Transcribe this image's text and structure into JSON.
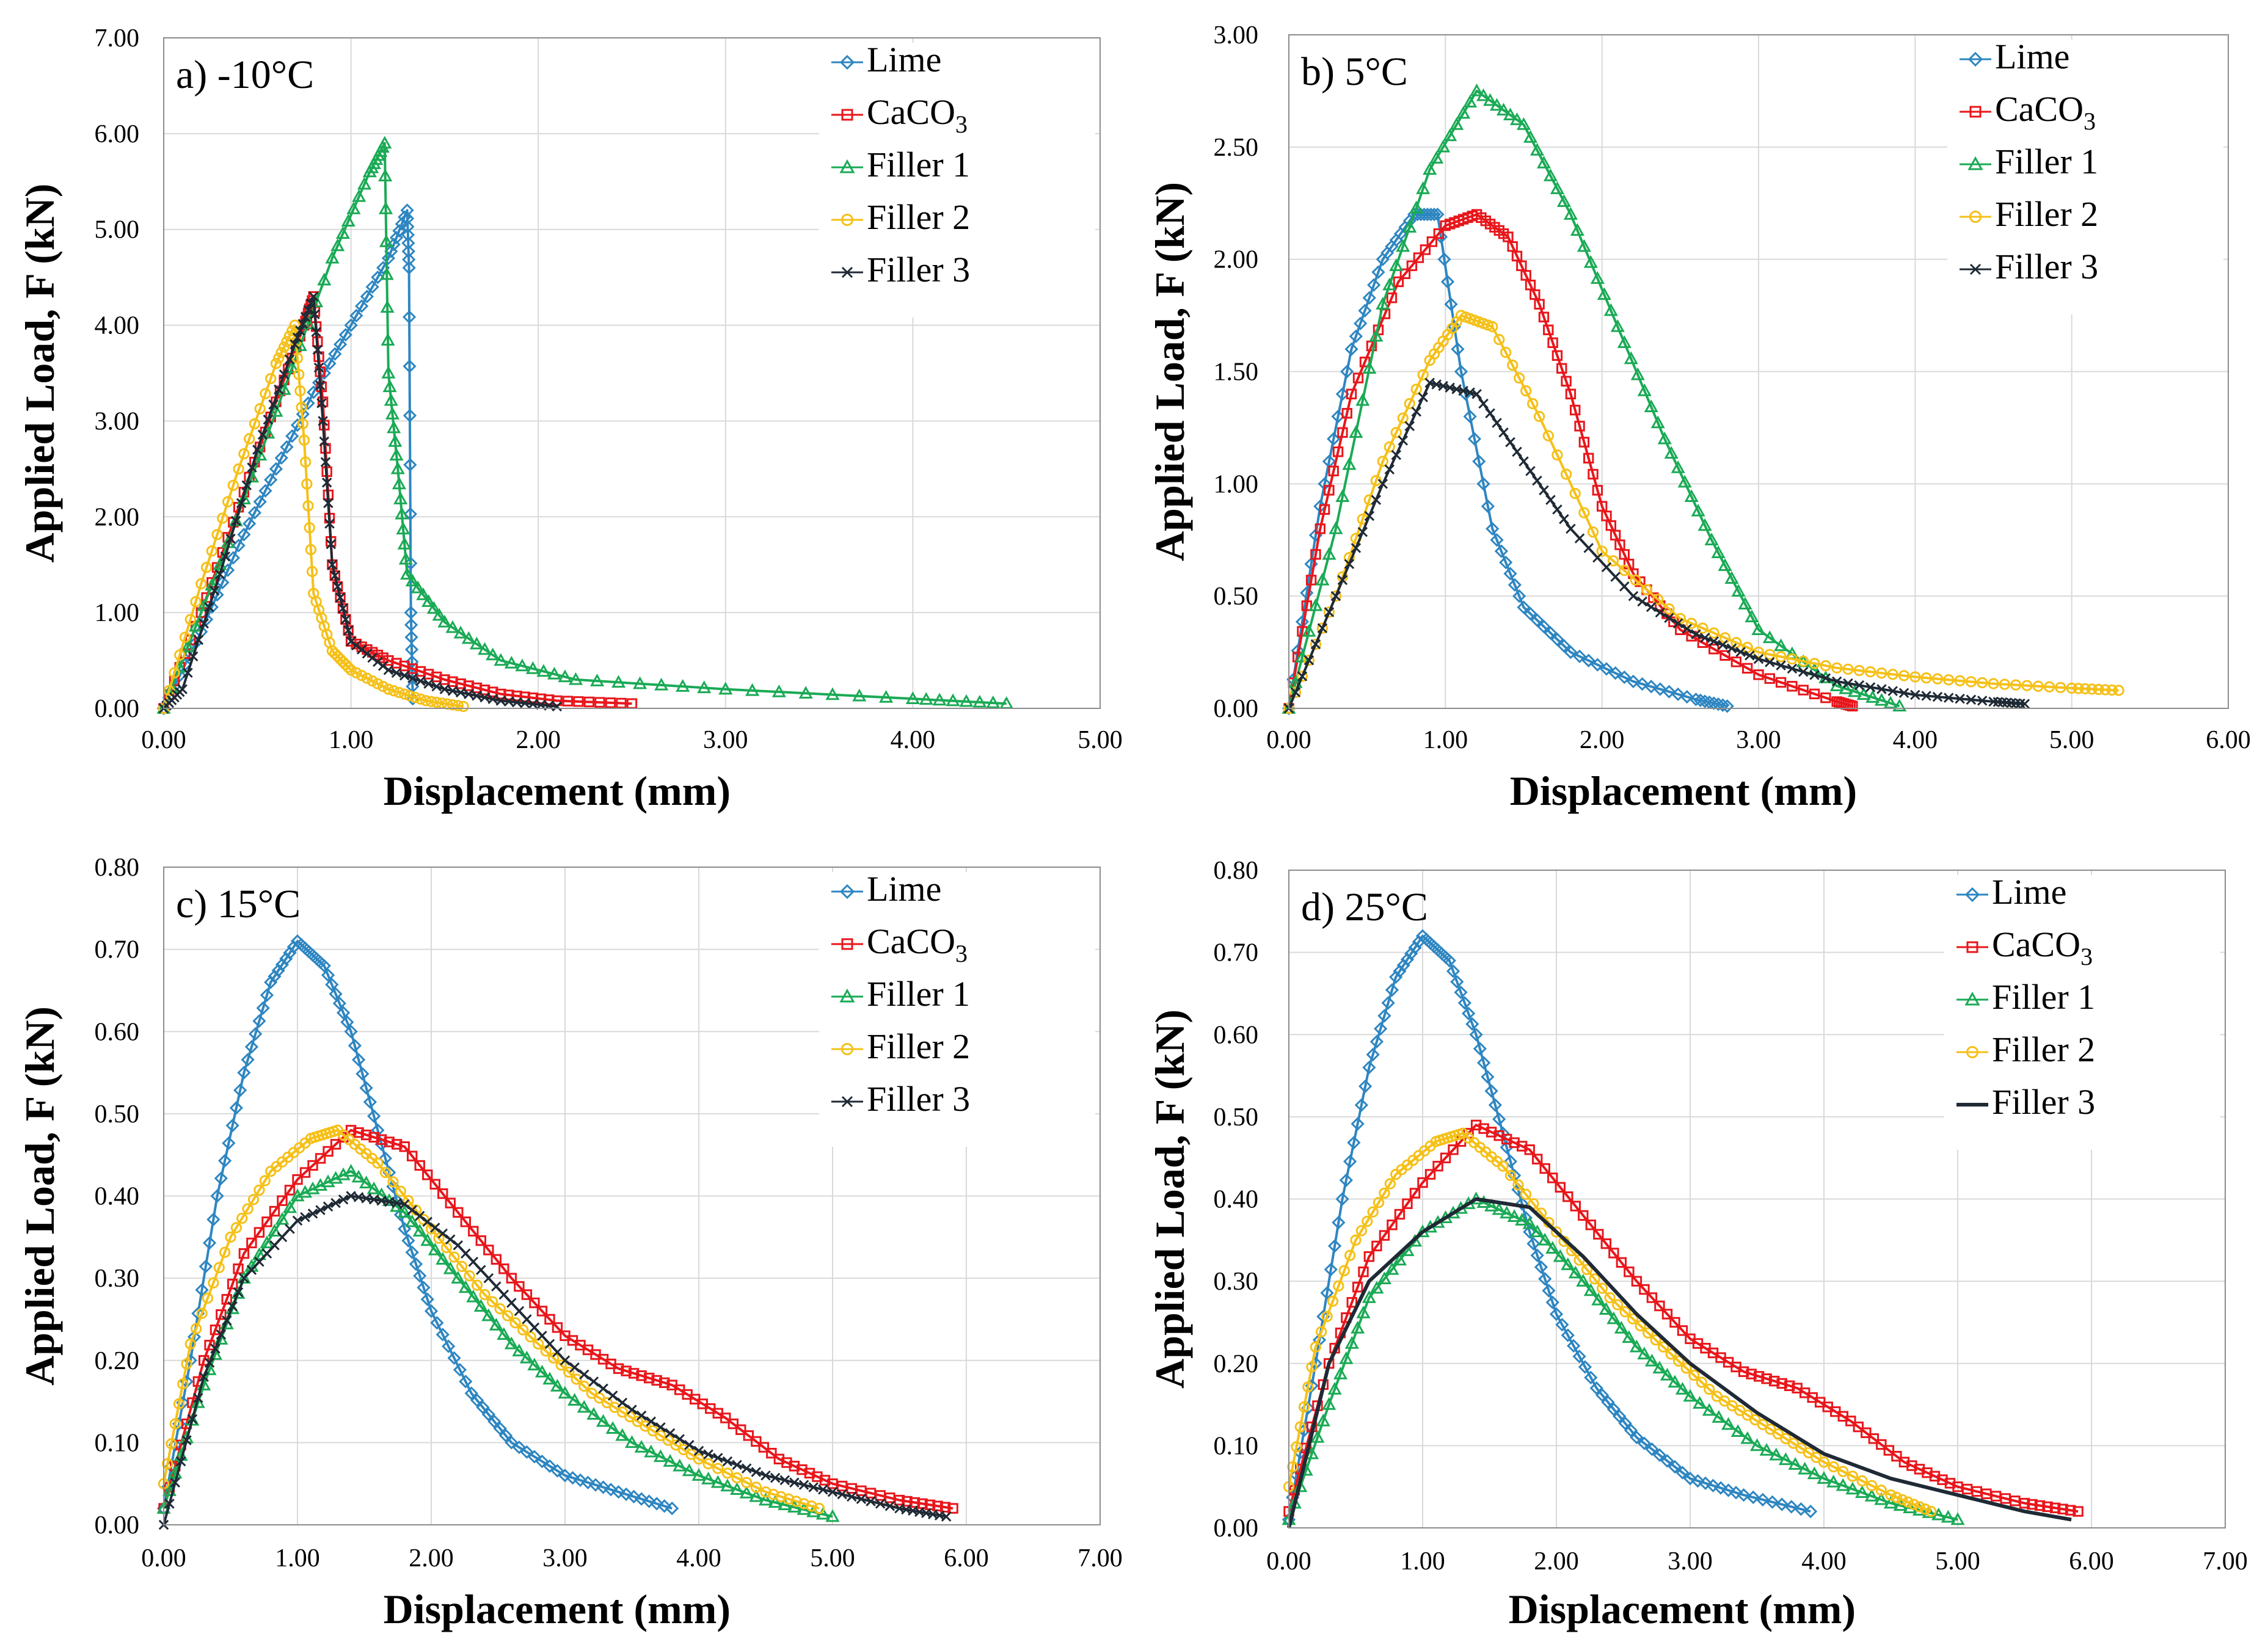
{
  "figure": {
    "background": "#ffffff"
  },
  "chart_data": [
    {
      "panel": "a",
      "title": "a) -10°C",
      "type": "scatter",
      "xlabel": "Displacement (mm)",
      "ylabel": "Applied Load, F (kN)",
      "xlim": [
        0,
        5
      ],
      "ylim": [
        0,
        7
      ],
      "xticks": [
        "0.00",
        "1.00",
        "2.00",
        "3.00",
        "4.00",
        "5.00"
      ],
      "yticks": [
        "0.00",
        "1.00",
        "2.00",
        "3.00",
        "4.00",
        "5.00",
        "6.00",
        "7.00"
      ],
      "grid": true,
      "legend_position": "top-right",
      "series": [
        {
          "name": "Lime",
          "label_main": "Lime",
          "label_sub": "",
          "color": "#2E86C1",
          "marker": "diamond",
          "x": [
            0,
            0.2,
            0.4,
            0.6,
            0.8,
            1.0,
            1.2,
            1.3,
            1.31,
            1.32,
            1.33
          ],
          "y": [
            0,
            0.8,
            1.7,
            2.5,
            3.3,
            4.0,
            4.7,
            5.2,
            4.6,
            1.0,
            0.1
          ]
        },
        {
          "name": "CaCO3",
          "label_main": "CaCO",
          "label_sub": "3",
          "color": "#E8161B",
          "marker": "square",
          "x": [
            0,
            0.2,
            0.4,
            0.6,
            0.75,
            0.8,
            0.85,
            0.9,
            1.0,
            1.2,
            1.5,
            1.8,
            2.1,
            2.5
          ],
          "y": [
            0,
            1.0,
            2.1,
            3.2,
            4.0,
            4.3,
            3.2,
            1.5,
            0.7,
            0.5,
            0.3,
            0.15,
            0.08,
            0.05
          ]
        },
        {
          "name": "Filler 1",
          "label_main": "Filler 1",
          "label_sub": "",
          "color": "#1AAA55",
          "marker": "triangle",
          "x": [
            0,
            0.3,
            0.6,
            0.9,
            1.1,
            1.18,
            1.2,
            1.25,
            1.3,
            1.5,
            1.8,
            2.2,
            3.0,
            4.0,
            4.5
          ],
          "y": [
            0,
            1.5,
            3.1,
            4.7,
            5.6,
            5.9,
            3.5,
            2.5,
            1.4,
            0.9,
            0.5,
            0.3,
            0.2,
            0.1,
            0.05
          ]
        },
        {
          "name": "Filler 2",
          "label_main": "Filler 2",
          "label_sub": "",
          "color": "#F5C018",
          "marker": "circle",
          "x": [
            0,
            0.2,
            0.4,
            0.6,
            0.7,
            0.75,
            0.8,
            0.9,
            1.0,
            1.2,
            1.4,
            1.6
          ],
          "y": [
            0,
            1.3,
            2.5,
            3.6,
            4.0,
            2.8,
            1.2,
            0.6,
            0.4,
            0.2,
            0.08,
            0.02
          ]
        },
        {
          "name": "Filler 3",
          "label_main": "Filler 3",
          "label_sub": "",
          "color": "#1F2A35",
          "marker": "cross",
          "x": [
            0,
            0.1,
            0.3,
            0.5,
            0.7,
            0.8,
            0.85,
            0.9,
            1.0,
            1.2,
            1.5,
            1.8,
            2.1
          ],
          "y": [
            0,
            0.2,
            1.4,
            2.7,
            3.8,
            4.3,
            3.0,
            1.5,
            0.7,
            0.4,
            0.2,
            0.08,
            0.02
          ]
        }
      ]
    },
    {
      "panel": "b",
      "title": "b) 5°C",
      "type": "scatter",
      "xlabel": "Displacement (mm)",
      "ylabel": "Applied Load, F (kN)",
      "xlim": [
        0,
        6
      ],
      "ylim": [
        0,
        3
      ],
      "xticks": [
        "0.00",
        "1.00",
        "2.00",
        "3.00",
        "4.00",
        "5.00",
        "6.00"
      ],
      "yticks": [
        "0.00",
        "0.50",
        "1.00",
        "1.50",
        "2.00",
        "2.50",
        "3.00"
      ],
      "grid": true,
      "legend_position": "top-right",
      "series": [
        {
          "name": "Lime",
          "label_main": "Lime",
          "label_sub": "",
          "color": "#2E86C1",
          "marker": "diamond",
          "x": [
            0,
            0.2,
            0.4,
            0.6,
            0.8,
            0.95,
            1.1,
            1.3,
            1.5,
            1.8,
            2.2,
            2.6,
            2.8
          ],
          "y": [
            0,
            0.9,
            1.6,
            2.0,
            2.2,
            2.2,
            1.5,
            0.8,
            0.45,
            0.25,
            0.12,
            0.04,
            0.01
          ]
        },
        {
          "name": "CaCO3",
          "label_main": "CaCO",
          "label_sub": "3",
          "color": "#E8161B",
          "marker": "square",
          "x": [
            0,
            0.2,
            0.4,
            0.7,
            1.0,
            1.2,
            1.4,
            1.6,
            1.8,
            2.0,
            2.2,
            2.5,
            3.0,
            3.5,
            3.6
          ],
          "y": [
            0,
            0.8,
            1.4,
            1.9,
            2.15,
            2.2,
            2.1,
            1.8,
            1.4,
            0.9,
            0.6,
            0.35,
            0.15,
            0.03,
            0.01
          ]
        },
        {
          "name": "Filler 1",
          "label_main": "Filler 1",
          "label_sub": "",
          "color": "#1AAA55",
          "marker": "triangle",
          "x": [
            0,
            0.3,
            0.6,
            0.9,
            1.2,
            1.5,
            1.8,
            2.1,
            2.4,
            2.7,
            3.0,
            3.5,
            3.9
          ],
          "y": [
            0,
            0.8,
            1.8,
            2.4,
            2.75,
            2.6,
            2.2,
            1.7,
            1.2,
            0.75,
            0.35,
            0.1,
            0.01
          ]
        },
        {
          "name": "Filler 2",
          "label_main": "Filler 2",
          "label_sub": "",
          "color": "#F5C018",
          "marker": "circle",
          "x": [
            0,
            0.3,
            0.6,
            0.9,
            1.1,
            1.3,
            1.6,
            2.0,
            2.5,
            3.0,
            3.5,
            4.0,
            4.5,
            5.0,
            5.3
          ],
          "y": [
            0,
            0.5,
            1.1,
            1.55,
            1.75,
            1.7,
            1.3,
            0.7,
            0.4,
            0.25,
            0.18,
            0.14,
            0.11,
            0.09,
            0.08
          ]
        },
        {
          "name": "Filler 3",
          "label_main": "Filler 3",
          "label_sub": "",
          "color": "#1F2A35",
          "marker": "cross",
          "x": [
            0,
            0.3,
            0.6,
            0.9,
            1.2,
            1.5,
            1.8,
            2.2,
            2.6,
            3.0,
            3.5,
            4.0,
            4.5,
            4.7
          ],
          "y": [
            0,
            0.5,
            1.0,
            1.45,
            1.4,
            1.1,
            0.8,
            0.5,
            0.33,
            0.22,
            0.12,
            0.06,
            0.03,
            0.02
          ]
        }
      ]
    },
    {
      "panel": "c",
      "title": "c) 15°C",
      "type": "scatter",
      "xlabel": "Displacement (mm)",
      "ylabel": "Applied Load, F (kN)",
      "xlim": [
        0,
        7
      ],
      "ylim": [
        0,
        0.8
      ],
      "xticks": [
        "0.00",
        "1.00",
        "2.00",
        "3.00",
        "4.00",
        "5.00",
        "6.00",
        "7.00"
      ],
      "yticks": [
        "0.00",
        "0.10",
        "0.20",
        "0.30",
        "0.40",
        "0.50",
        "0.60",
        "0.70",
        "0.80"
      ],
      "grid": true,
      "legend_position": "top-right",
      "series": [
        {
          "name": "Lime",
          "label_main": "Lime",
          "label_sub": "",
          "color": "#2E86C1",
          "marker": "diamond",
          "x": [
            0,
            0.2,
            0.4,
            0.6,
            0.8,
            1.0,
            1.2,
            1.4,
            1.6,
            1.8,
            2.0,
            2.3,
            2.6,
            3.0,
            3.4,
            3.8
          ],
          "y": [
            0.02,
            0.2,
            0.4,
            0.55,
            0.66,
            0.71,
            0.68,
            0.6,
            0.48,
            0.36,
            0.26,
            0.16,
            0.1,
            0.06,
            0.04,
            0.02
          ]
        },
        {
          "name": "CaCO3",
          "label_main": "CaCO",
          "label_sub": "3",
          "color": "#E8161B",
          "marker": "square",
          "x": [
            0,
            0.3,
            0.6,
            1.0,
            1.4,
            1.8,
            2.2,
            2.6,
            3.0,
            3.4,
            3.8,
            4.2,
            4.6,
            5.0,
            5.5,
            5.9
          ],
          "y": [
            0.02,
            0.2,
            0.33,
            0.42,
            0.48,
            0.46,
            0.38,
            0.3,
            0.23,
            0.19,
            0.17,
            0.13,
            0.08,
            0.05,
            0.03,
            0.02
          ]
        },
        {
          "name": "Filler 1",
          "label_main": "Filler 1",
          "label_sub": "",
          "color": "#1AAA55",
          "marker": "triangle",
          "x": [
            0,
            0.3,
            0.6,
            1.0,
            1.4,
            1.8,
            2.2,
            2.6,
            3.0,
            3.5,
            4.0,
            4.5,
            5.0
          ],
          "y": [
            0.02,
            0.17,
            0.3,
            0.4,
            0.43,
            0.38,
            0.3,
            0.22,
            0.16,
            0.1,
            0.06,
            0.03,
            0.01
          ]
        },
        {
          "name": "Filler 2",
          "label_main": "Filler 2",
          "label_sub": "",
          "color": "#F5C018",
          "marker": "circle",
          "x": [
            0,
            0.2,
            0.5,
            0.8,
            1.1,
            1.3,
            1.6,
            2.0,
            2.4,
            2.8,
            3.2,
            3.6,
            4.0,
            4.5,
            4.9
          ],
          "y": [
            0.05,
            0.22,
            0.35,
            0.43,
            0.47,
            0.48,
            0.44,
            0.36,
            0.28,
            0.22,
            0.16,
            0.12,
            0.08,
            0.04,
            0.02
          ]
        },
        {
          "name": "Filler 3",
          "label_main": "Filler 3",
          "label_sub": "",
          "color": "#1F2A35",
          "marker": "cross",
          "x": [
            0,
            0.3,
            0.6,
            1.0,
            1.4,
            1.8,
            2.2,
            2.6,
            3.0,
            3.5,
            4.0,
            4.5,
            5.0,
            5.5,
            5.85
          ],
          "y": [
            0,
            0.18,
            0.3,
            0.37,
            0.4,
            0.39,
            0.34,
            0.27,
            0.2,
            0.14,
            0.09,
            0.06,
            0.04,
            0.02,
            0.01
          ]
        }
      ]
    },
    {
      "panel": "d",
      "title": "d) 25°C",
      "type": "scatter",
      "xlabel": "Displacement (mm)",
      "ylabel": "Applied Load, F (kN)",
      "xlim": [
        0,
        7
      ],
      "ylim": [
        0,
        0.8
      ],
      "xticks": [
        "0.00",
        "1.00",
        "2.00",
        "3.00",
        "4.00",
        "5.00",
        "6.00",
        "7.00"
      ],
      "yticks": [
        "0.00",
        "0.10",
        "0.20",
        "0.30",
        "0.40",
        "0.50",
        "0.60",
        "0.70",
        "0.80"
      ],
      "grid": true,
      "legend_position": "top-right",
      "series": [
        {
          "name": "Lime",
          "label_main": "Lime",
          "label_sub": "",
          "color": "#2E86C1",
          "marker": "diamond",
          "x": [
            0,
            0.2,
            0.4,
            0.6,
            0.8,
            1.0,
            1.2,
            1.4,
            1.6,
            1.8,
            2.0,
            2.3,
            2.6,
            3.0,
            3.4,
            3.9
          ],
          "y": [
            0.01,
            0.2,
            0.4,
            0.56,
            0.67,
            0.72,
            0.69,
            0.6,
            0.48,
            0.36,
            0.26,
            0.17,
            0.11,
            0.06,
            0.04,
            0.02
          ]
        },
        {
          "name": "CaCO3",
          "label_main": "CaCO",
          "label_sub": "3",
          "color": "#E8161B",
          "marker": "square",
          "x": [
            0,
            0.3,
            0.6,
            1.0,
            1.4,
            1.8,
            2.2,
            2.6,
            3.0,
            3.4,
            3.8,
            4.2,
            4.6,
            5.0,
            5.5,
            5.9
          ],
          "y": [
            0.02,
            0.2,
            0.33,
            0.42,
            0.49,
            0.46,
            0.38,
            0.3,
            0.23,
            0.19,
            0.17,
            0.13,
            0.08,
            0.05,
            0.03,
            0.02
          ]
        },
        {
          "name": "Filler 1",
          "label_main": "Filler 1",
          "label_sub": "",
          "color": "#1AAA55",
          "marker": "triangle",
          "x": [
            0,
            0.3,
            0.6,
            1.0,
            1.4,
            1.8,
            2.2,
            2.6,
            3.0,
            3.5,
            4.0,
            4.5,
            5.0
          ],
          "y": [
            0.01,
            0.15,
            0.28,
            0.36,
            0.4,
            0.37,
            0.3,
            0.22,
            0.16,
            0.1,
            0.06,
            0.03,
            0.01
          ]
        },
        {
          "name": "Filler 2",
          "label_main": "Filler 2",
          "label_sub": "",
          "color": "#F5C018",
          "marker": "circle",
          "x": [
            0,
            0.2,
            0.5,
            0.8,
            1.1,
            1.3,
            1.6,
            2.0,
            2.4,
            2.8,
            3.2,
            3.6,
            4.0,
            4.5,
            4.8
          ],
          "y": [
            0.05,
            0.22,
            0.35,
            0.43,
            0.47,
            0.48,
            0.44,
            0.36,
            0.28,
            0.22,
            0.16,
            0.12,
            0.08,
            0.04,
            0.02
          ]
        },
        {
          "name": "Filler 3",
          "label_main": "Filler 3",
          "label_sub": "",
          "color": "#1F2A35",
          "marker": "line",
          "x": [
            0,
            0.3,
            0.6,
            1.0,
            1.4,
            1.8,
            2.2,
            2.6,
            3.0,
            3.5,
            4.0,
            4.5,
            5.0,
            5.5,
            5.85
          ],
          "y": [
            0,
            0.2,
            0.3,
            0.36,
            0.4,
            0.39,
            0.33,
            0.26,
            0.2,
            0.14,
            0.09,
            0.06,
            0.04,
            0.02,
            0.01
          ]
        }
      ]
    }
  ]
}
